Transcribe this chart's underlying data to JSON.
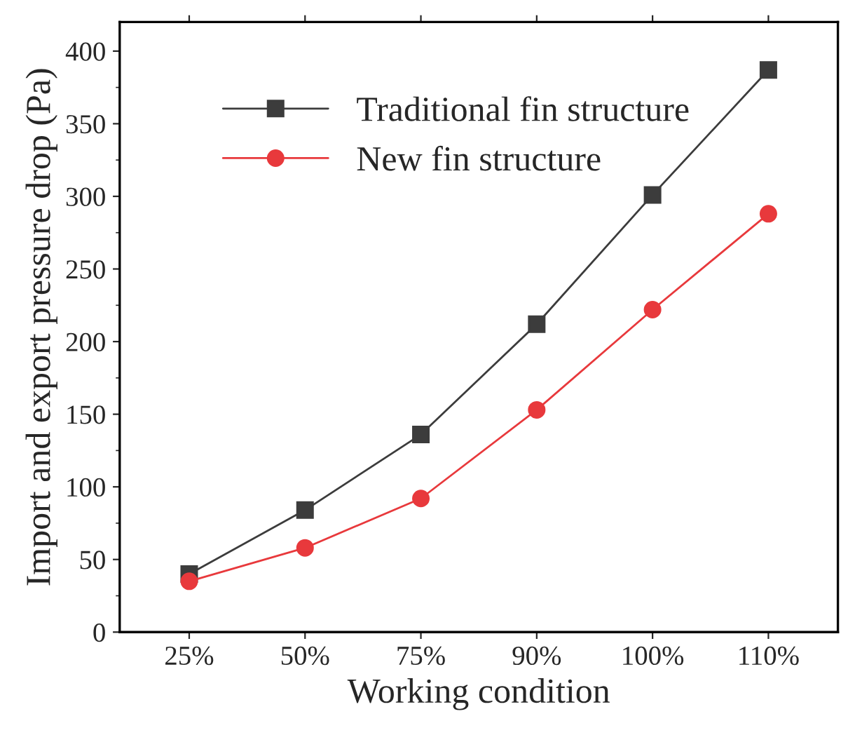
{
  "chart_data": {
    "type": "line",
    "xlabel": "Working condition",
    "ylabel": "Import and export pressure drop (Pa)",
    "categories": [
      "25%",
      "50%",
      "75%",
      "90%",
      "100%",
      "110%"
    ],
    "series": [
      {
        "name": "Traditional fin structure",
        "color": "#3c3c3c",
        "marker": "square",
        "values": [
          40,
          84,
          136,
          212,
          301,
          387
        ]
      },
      {
        "name": "New fin structure",
        "color": "#e8393c",
        "marker": "circle",
        "values": [
          35,
          58,
          92,
          153,
          222,
          288
        ]
      }
    ],
    "ylim": [
      0,
      420
    ],
    "yticks": [
      0,
      50,
      100,
      150,
      200,
      250,
      300,
      350,
      400
    ],
    "grid": false,
    "legend": "top left",
    "line_style": "solid"
  }
}
